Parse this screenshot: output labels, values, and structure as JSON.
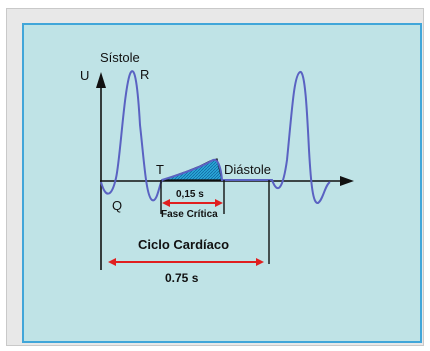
{
  "labels": {
    "sistole": "Sístole",
    "u": "U",
    "r": "R",
    "q": "Q",
    "t": "T",
    "diastole": "Diástole",
    "interval_small": "0,15 s",
    "fase_critica": "Fase Crítica",
    "ciclo": "Ciclo Cardíaco",
    "interval_cycle": "0.75 s"
  },
  "colors": {
    "panel_bg": "#bfe3e6",
    "panel_border": "#41a6d9",
    "waveform": "#5a62c2",
    "arrow": "#e01f1f",
    "axis": "#111111",
    "fill": "#2aa7d6"
  }
}
